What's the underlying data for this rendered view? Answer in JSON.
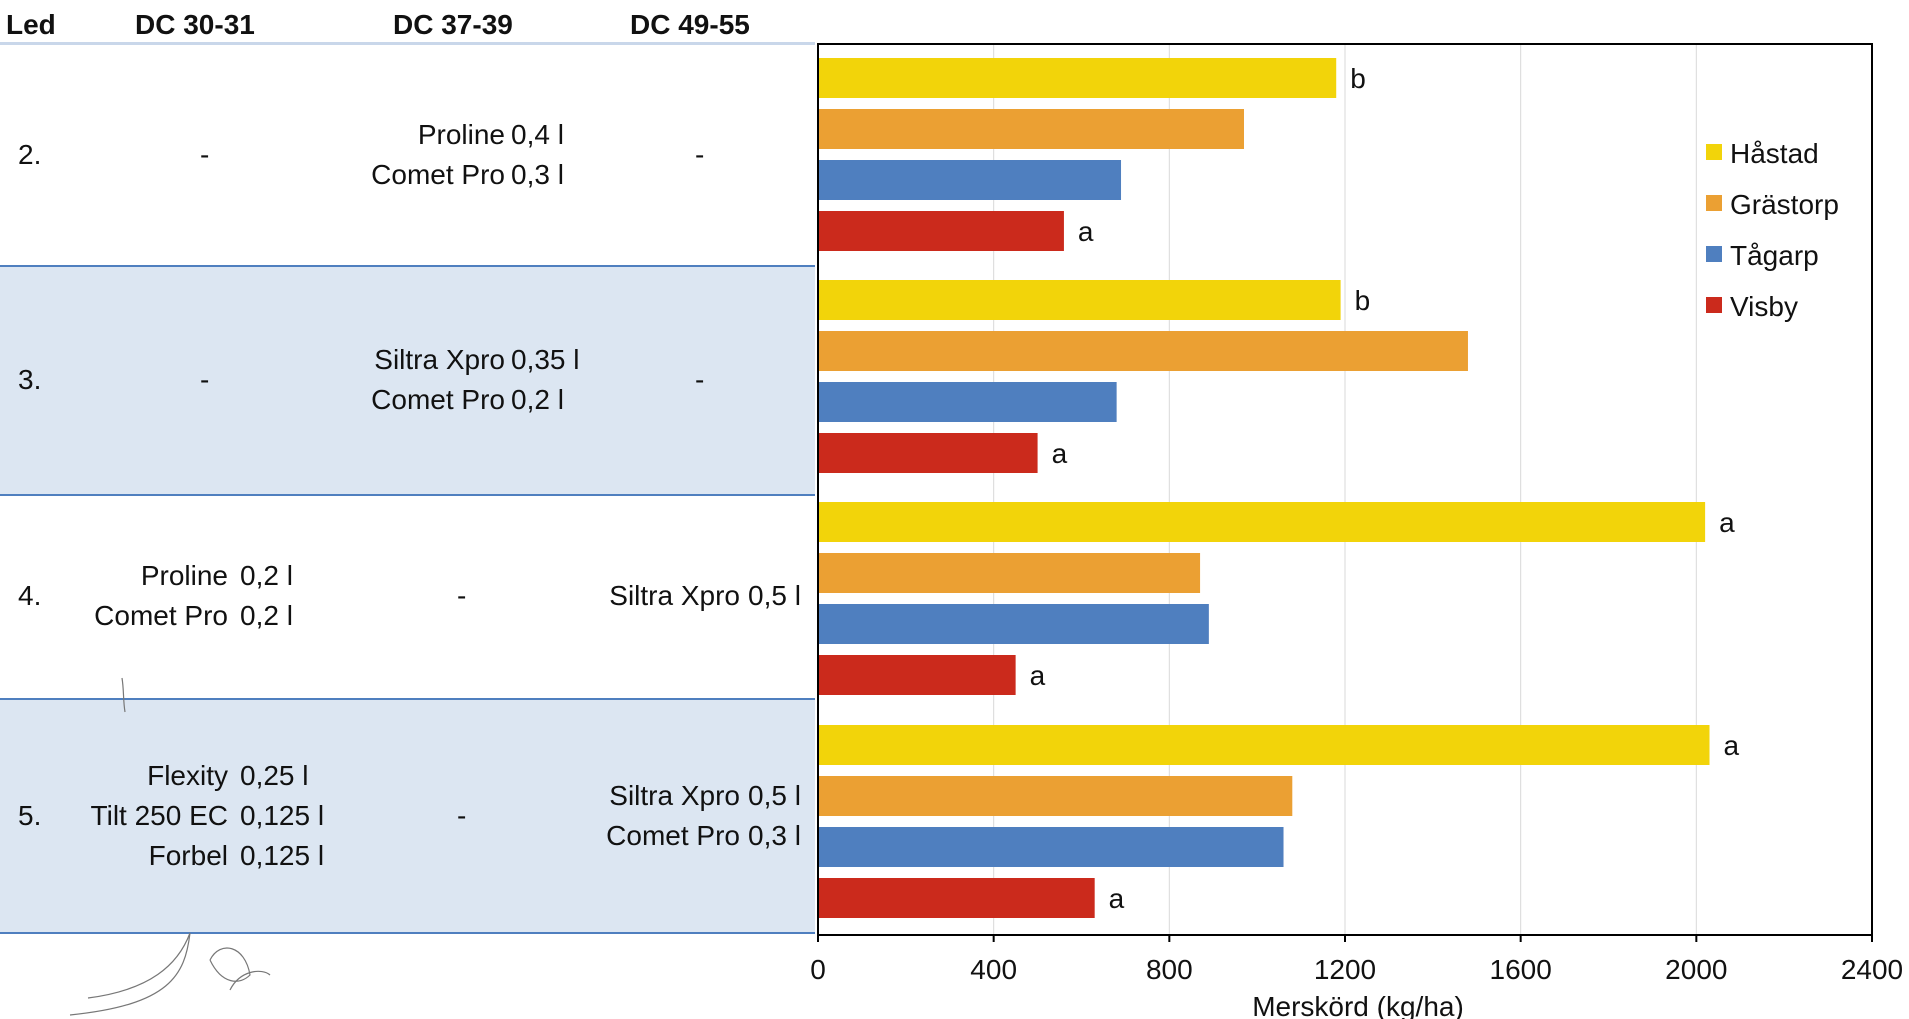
{
  "table": {
    "headers": [
      "Led",
      "DC 30-31",
      "DC 37-39",
      "DC 49-55"
    ],
    "rows": [
      {
        "led": "2.",
        "dc30": [
          {
            "p": "-",
            "d": ""
          }
        ],
        "dc37": [
          {
            "p": "Proline",
            "d": "0,4 l"
          },
          {
            "p": "Comet Pro",
            "d": "0,3 l"
          }
        ],
        "dc49": [
          {
            "p": "-",
            "d": ""
          }
        ]
      },
      {
        "led": "3.",
        "dc30": [
          {
            "p": "-",
            "d": ""
          }
        ],
        "dc37": [
          {
            "p": "Siltra Xpro",
            "d": "0,35 l"
          },
          {
            "p": "Comet Pro",
            "d": "0,2 l"
          }
        ],
        "dc49": [
          {
            "p": "-",
            "d": ""
          }
        ]
      },
      {
        "led": "4.",
        "dc30": [
          {
            "p": "Proline",
            "d": "0,2 l"
          },
          {
            "p": "Comet Pro",
            "d": "0,2 l"
          }
        ],
        "dc37": [
          {
            "p": "-",
            "d": ""
          }
        ],
        "dc49": [
          {
            "p": "Siltra Xpro",
            "d": "0,5 l"
          }
        ]
      },
      {
        "led": "5.",
        "dc30": [
          {
            "p": "Flexity",
            "d": "0,25 l"
          },
          {
            "p": "Tilt 250 EC",
            "d": "0,125 l"
          },
          {
            "p": "Forbel",
            "d": "0,125 l"
          }
        ],
        "dc37": [
          {
            "p": "-",
            "d": ""
          }
        ],
        "dc49": [
          {
            "p": "Siltra Xpro",
            "d": "0,5 l"
          },
          {
            "p": "Comet Pro",
            "d": "0,3 l"
          }
        ]
      }
    ]
  },
  "colors": {
    "row_band": "#dce6f2",
    "row_line": "#4f7fbf",
    "grid": "#d9d9d9"
  },
  "chart_data": {
    "type": "bar",
    "orientation": "horizontal",
    "categories": [
      "2.",
      "3.",
      "4.",
      "5."
    ],
    "series": [
      {
        "name": "Håstad",
        "color": "#f2d40a",
        "values": [
          1180,
          1190,
          2020,
          2030
        ],
        "labels": [
          "b",
          "b",
          "a",
          "a"
        ]
      },
      {
        "name": "Grästorp",
        "color": "#eba033",
        "values": [
          970,
          1480,
          870,
          1080
        ],
        "labels": [
          "",
          "",
          "",
          ""
        ]
      },
      {
        "name": "Tågarp",
        "color": "#4f7fbf",
        "values": [
          690,
          680,
          890,
          1060
        ],
        "labels": [
          "",
          "",
          "",
          ""
        ]
      },
      {
        "name": "Visby",
        "color": "#cb2a1c",
        "values": [
          560,
          500,
          450,
          630
        ],
        "labels": [
          "a",
          "a",
          "a",
          "a"
        ]
      }
    ],
    "xlabel": "Merskörd (kg/ha)",
    "ylabel": "",
    "xlim": [
      0,
      2400
    ],
    "xticks": [
      "0",
      "400",
      "800",
      "1200",
      "1600",
      "2000",
      "2400"
    ],
    "grid": true,
    "legend": "right"
  }
}
